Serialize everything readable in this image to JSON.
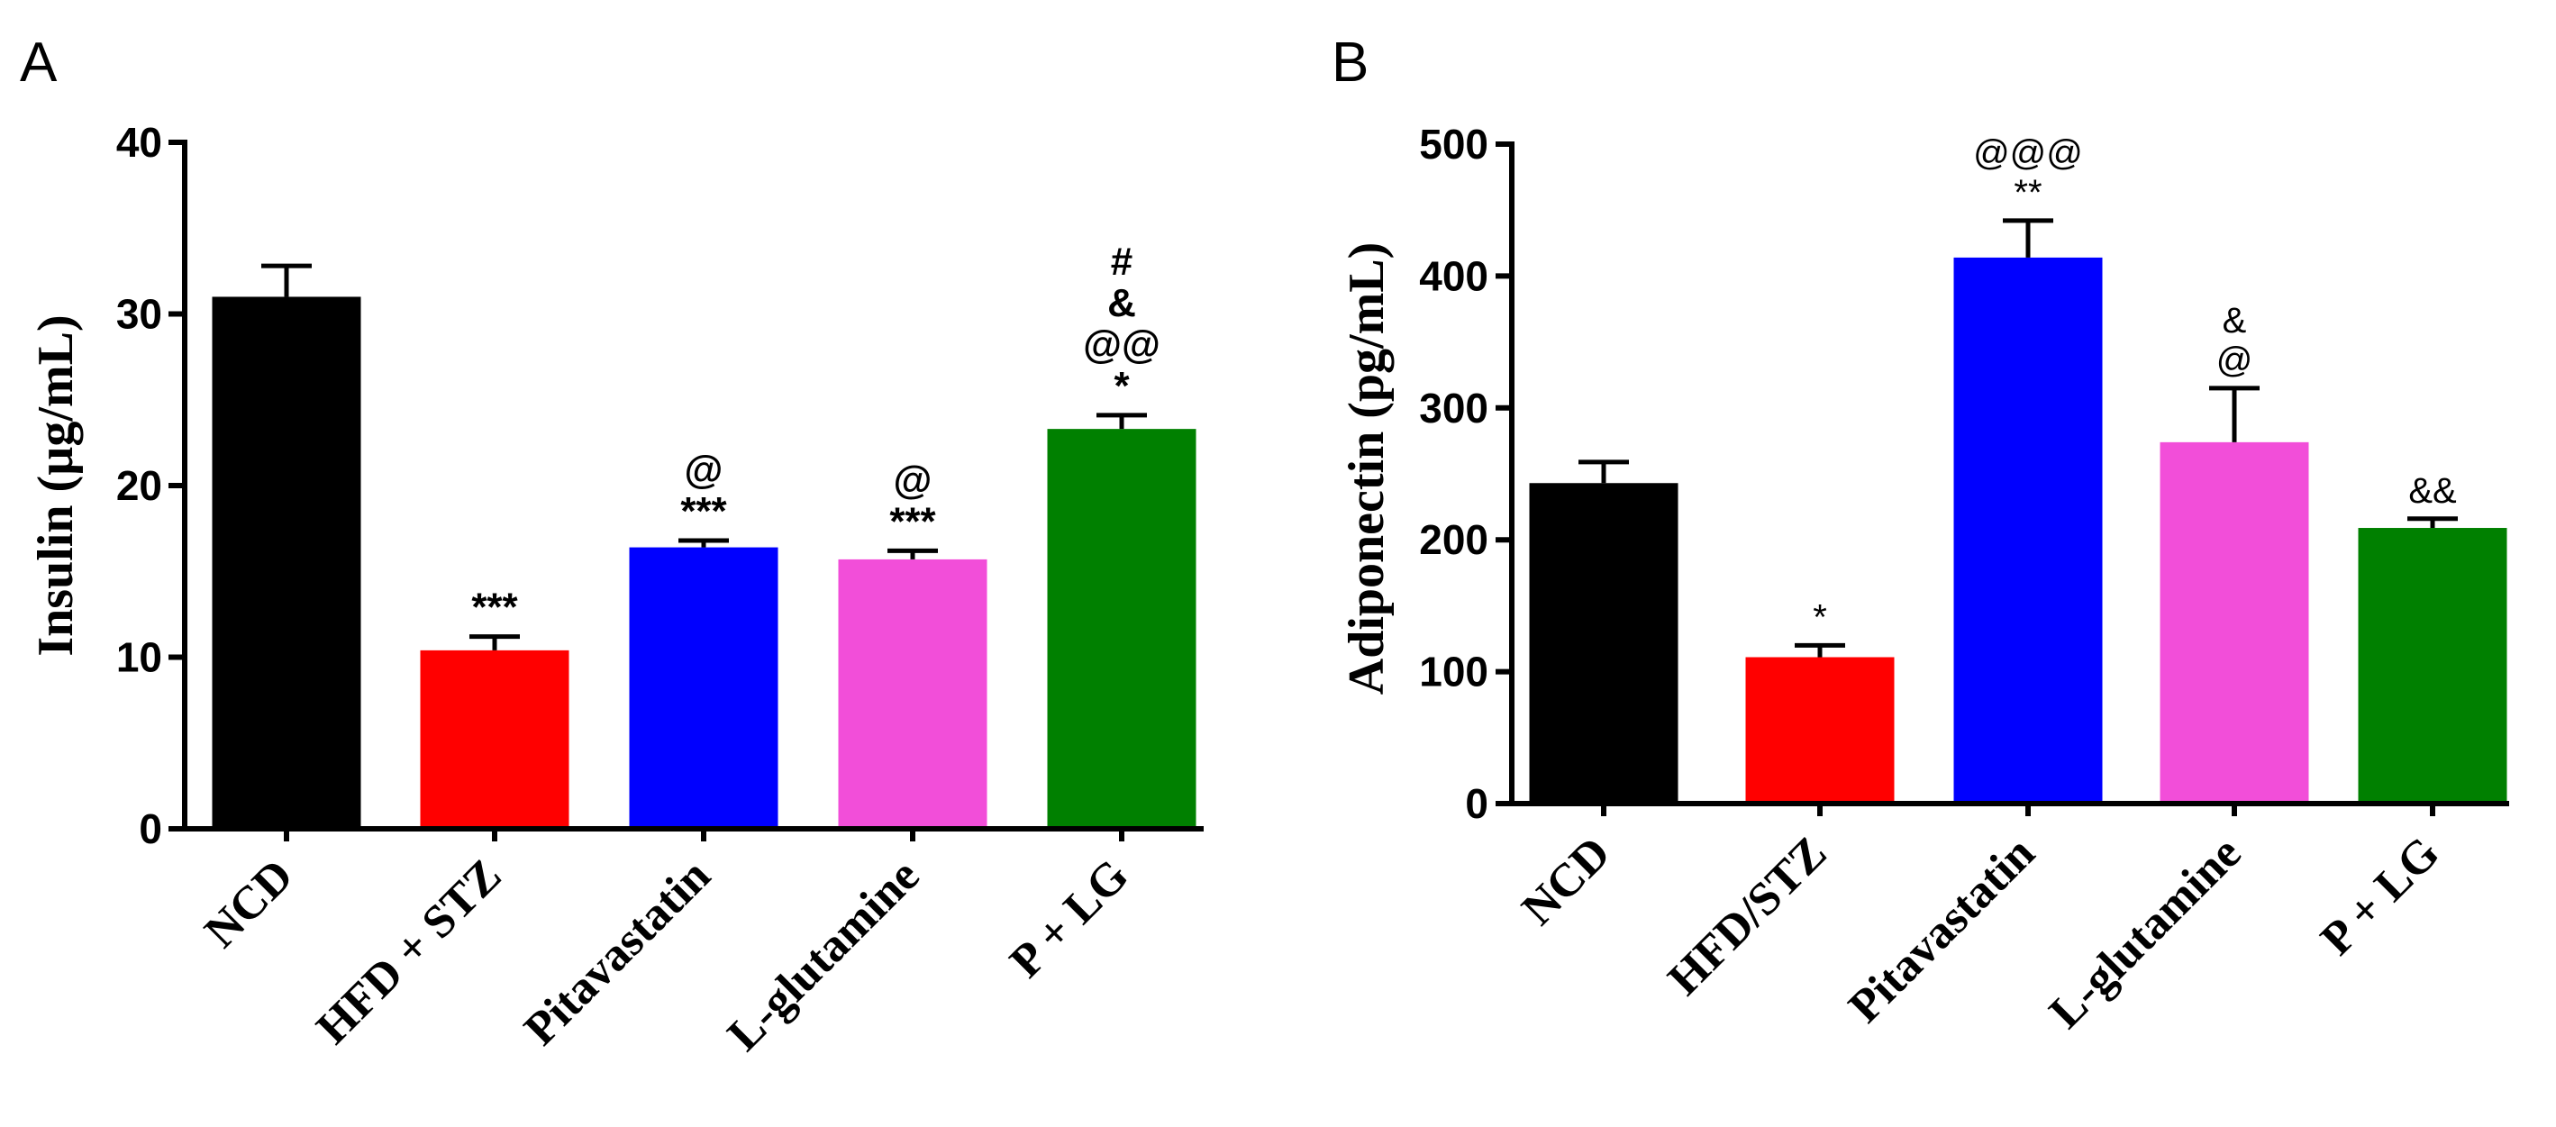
{
  "chart_data": [
    {
      "panel": "A",
      "type": "bar",
      "ylabel": "Insulin (µg/mL)",
      "ylim": [
        0,
        40
      ],
      "yticks": [
        0,
        10,
        20,
        30,
        40
      ],
      "categories": [
        "NCD",
        "HFD + STZ",
        "Pitavastatin",
        "L-glutamine",
        "P + LG"
      ],
      "values": [
        31,
        10.4,
        16.4,
        15.7,
        23.3
      ],
      "errors": [
        1.8,
        0.8,
        0.4,
        0.5,
        0.8
      ],
      "colors": [
        "#000000",
        "#ff0000",
        "#0000ff",
        "#f24ed9",
        "#008000"
      ],
      "annotations": [
        [],
        [
          "***"
        ],
        [
          "***",
          "@"
        ],
        [
          "***",
          "@"
        ],
        [
          "*",
          "@@",
          "&",
          "#"
        ]
      ]
    },
    {
      "panel": "B",
      "type": "bar",
      "ylabel": "Adiponectin (pg/mL)",
      "ylim": [
        0,
        500
      ],
      "yticks": [
        0,
        100,
        200,
        300,
        400,
        500
      ],
      "categories": [
        "NCD",
        "HFD/STZ",
        "Pitavastatin",
        "L-glutamine",
        "P + LG"
      ],
      "values": [
        243,
        111,
        414,
        274,
        209
      ],
      "errors": [
        16,
        9,
        28,
        41,
        7
      ],
      "colors": [
        "#000000",
        "#ff0000",
        "#0000ff",
        "#f24ed9",
        "#008000"
      ],
      "annotations": [
        [],
        [
          "*"
        ],
        [
          "**",
          "@@@"
        ],
        [
          "@",
          "&"
        ],
        [
          "&&"
        ]
      ]
    }
  ]
}
